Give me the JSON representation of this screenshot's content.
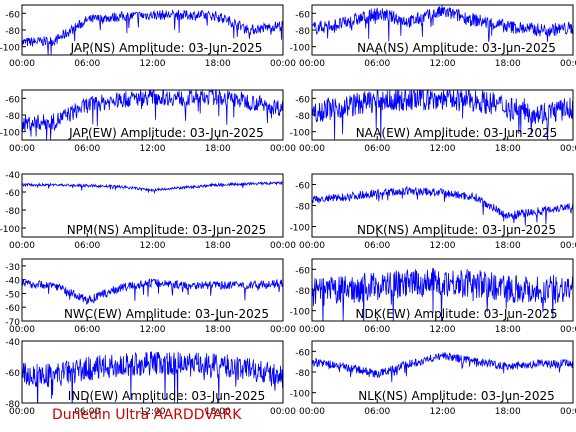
{
  "footer": "Dunedin Ultra AARDDVARK",
  "colors": {
    "trace": "#0000ff",
    "axis": "#000000",
    "footer": "#d40000",
    "background": "#ffffff"
  },
  "chart_data": [
    {
      "type": "line",
      "title": "JAP(NS) Amplitude: 03-Jun-2025",
      "x": [
        "00:00",
        "03:00",
        "06:00",
        "09:00",
        "12:00",
        "15:00",
        "18:00",
        "21:00",
        "24:00"
      ],
      "xticks": [
        "00:00",
        "06:00",
        "12:00",
        "18:00",
        "00:00"
      ],
      "ylim": [
        -110,
        -50
      ],
      "yticks": [
        -100,
        -80,
        -60
      ],
      "levels": [
        -95,
        -93,
        -68,
        -64,
        -62,
        -62,
        -63,
        -80,
        -74
      ],
      "noise": 6,
      "grid": false
    },
    {
      "type": "line",
      "title": "NAA(NS) Amplitude: 03-Jun-2025",
      "x": [
        "00:00",
        "03:00",
        "06:00",
        "09:00",
        "12:00",
        "15:00",
        "18:00",
        "21:00",
        "24:00"
      ],
      "xticks": [
        "00:00",
        "06:00",
        "12:00",
        "18:00",
        "00:00"
      ],
      "ylim": [
        -110,
        -50
      ],
      "yticks": [
        -100,
        -80,
        -60
      ],
      "levels": [
        -78,
        -72,
        -60,
        -70,
        -58,
        -68,
        -76,
        -80,
        -78
      ],
      "noise": 8,
      "grid": false
    },
    {
      "type": "line",
      "title": "JAP(EW) Amplitude: 03-Jun-2025",
      "x": [
        "00:00",
        "03:00",
        "06:00",
        "09:00",
        "12:00",
        "15:00",
        "18:00",
        "21:00",
        "24:00"
      ],
      "xticks": [
        "00:00",
        "06:00",
        "12:00",
        "18:00",
        "00:00"
      ],
      "ylim": [
        -110,
        -50
      ],
      "yticks": [
        -100,
        -80,
        -60
      ],
      "levels": [
        -90,
        -88,
        -68,
        -62,
        -58,
        -60,
        -58,
        -64,
        -72
      ],
      "noise": 10,
      "grid": false
    },
    {
      "type": "line",
      "title": "NAA(EW) Amplitude: 03-Jun-2025",
      "x": [
        "00:00",
        "03:00",
        "06:00",
        "09:00",
        "12:00",
        "15:00",
        "18:00",
        "21:00",
        "24:00"
      ],
      "xticks": [
        "00:00",
        "06:00",
        "12:00",
        "18:00",
        "00:00"
      ],
      "ylim": [
        -110,
        -50
      ],
      "yticks": [
        -100,
        -80,
        -60
      ],
      "levels": [
        -75,
        -70,
        -62,
        -62,
        -60,
        -62,
        -70,
        -78,
        -72
      ],
      "noise": 14,
      "grid": false
    },
    {
      "type": "line",
      "title": "NPM(NS) Amplitude: 03-Jun-2025",
      "x": [
        "00:00",
        "03:00",
        "06:00",
        "09:00",
        "12:00",
        "15:00",
        "18:00",
        "21:00",
        "24:00"
      ],
      "xticks": [
        "00:00",
        "06:00",
        "12:00",
        "18:00",
        "00:00"
      ],
      "ylim": [
        -110,
        -40
      ],
      "yticks": [
        -100,
        -80,
        -60,
        -40
      ],
      "levels": [
        -52,
        -52,
        -53,
        -54,
        -58,
        -55,
        -52,
        -51,
        -50
      ],
      "noise": 1.5,
      "grid": false
    },
    {
      "type": "line",
      "title": "NDK(NS) Amplitude: 03-Jun-2025",
      "x": [
        "00:00",
        "03:00",
        "06:00",
        "09:00",
        "12:00",
        "15:00",
        "18:00",
        "21:00",
        "24:00"
      ],
      "xticks": [
        "00:00",
        "06:00",
        "12:00",
        "18:00",
        "00:00"
      ],
      "ylim": [
        -110,
        -50
      ],
      "yticks": [
        -100,
        -80,
        -60
      ],
      "levels": [
        -75,
        -72,
        -68,
        -66,
        -68,
        -72,
        -90,
        -85,
        -80
      ],
      "noise": 4,
      "grid": false
    },
    {
      "type": "line",
      "title": "NWC(EW) Amplitude: 03-Jun-2025",
      "x": [
        "00:00",
        "03:00",
        "06:00",
        "09:00",
        "12:00",
        "15:00",
        "18:00",
        "21:00",
        "24:00"
      ],
      "xticks": [
        "00:00",
        "06:00",
        "12:00",
        "18:00",
        "00:00"
      ],
      "ylim": [
        -70,
        -25
      ],
      "yticks": [
        -70,
        -60,
        -50,
        -40,
        -30
      ],
      "levels": [
        -43,
        -44,
        -55,
        -46,
        -42,
        -44,
        -44,
        -44,
        -43
      ],
      "noise": 3,
      "grid": false
    },
    {
      "type": "line",
      "title": "NDK(EW) Amplitude: 03-Jun-2025",
      "x": [
        "00:00",
        "03:00",
        "06:00",
        "09:00",
        "12:00",
        "15:00",
        "18:00",
        "21:00",
        "24:00"
      ],
      "xticks": [
        "00:00",
        "06:00",
        "12:00",
        "18:00",
        "00:00"
      ],
      "ylim": [
        -110,
        -50
      ],
      "yticks": [
        -100,
        -80,
        -60
      ],
      "levels": [
        -82,
        -80,
        -76,
        -74,
        -72,
        -74,
        -78,
        -80,
        -78
      ],
      "noise": 14,
      "grid": false
    },
    {
      "type": "line",
      "title": "IND(EW) Amplitude: 03-Jun-2025",
      "x": [
        "00:00",
        "03:00",
        "06:00",
        "09:00",
        "12:00",
        "15:00",
        "18:00",
        "21:00",
        "24:00"
      ],
      "xticks": [
        "00:00",
        "06:00",
        "12:00",
        "18:00",
        "00:00"
      ],
      "ylim": [
        -80,
        -40
      ],
      "yticks": [
        -80,
        -60,
        -40
      ],
      "levels": [
        -62,
        -62,
        -58,
        -56,
        -54,
        -55,
        -56,
        -58,
        -64
      ],
      "noise": 8,
      "grid": false
    },
    {
      "type": "line",
      "title": "NLK(NS) Amplitude: 03-Jun-2025",
      "x": [
        "00:00",
        "03:00",
        "06:00",
        "09:00",
        "12:00",
        "15:00",
        "18:00",
        "21:00",
        "24:00"
      ],
      "xticks": [
        "00:00",
        "06:00",
        "12:00",
        "18:00",
        "00:00"
      ],
      "ylim": [
        -110,
        -50
      ],
      "yticks": [
        -100,
        -80,
        -60
      ],
      "levels": [
        -70,
        -75,
        -82,
        -72,
        -64,
        -70,
        -74,
        -72,
        -72
      ],
      "noise": 4,
      "grid": false
    }
  ]
}
